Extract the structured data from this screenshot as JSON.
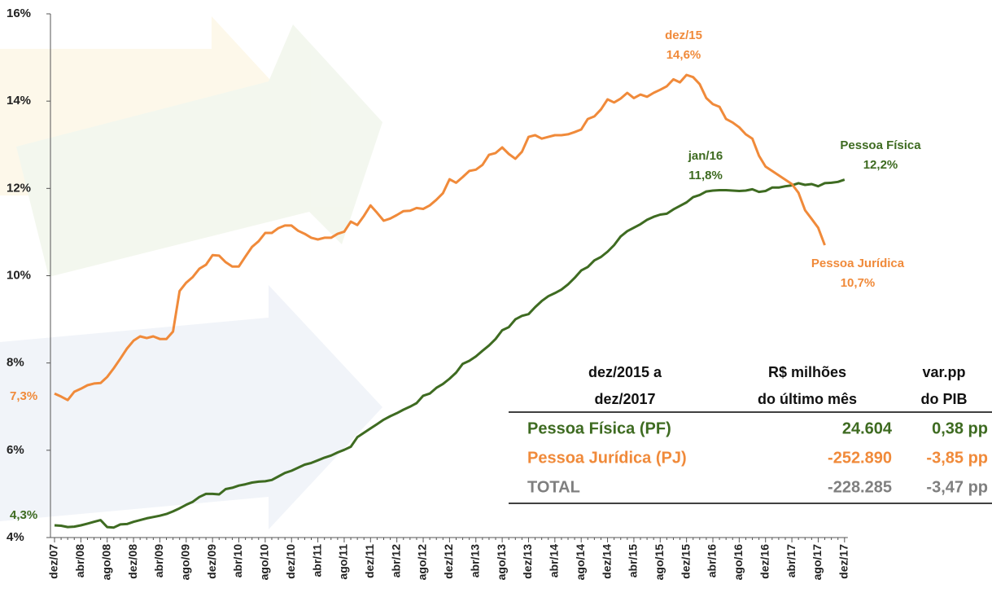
{
  "chart_data": {
    "type": "line",
    "categories": [
      "dez/07",
      null,
      null,
      null,
      "abr/08",
      null,
      null,
      null,
      "ago/08",
      null,
      null,
      null,
      "dez/08",
      null,
      null,
      null,
      "abr/09",
      null,
      null,
      null,
      "ago/09",
      null,
      null,
      null,
      "dez/09",
      null,
      null,
      null,
      "abr/10",
      null,
      null,
      null,
      "ago/10",
      null,
      null,
      null,
      "dez/10",
      null,
      null,
      null,
      "abr/11",
      null,
      null,
      null,
      "ago/11",
      null,
      null,
      null,
      "dez/11",
      null,
      null,
      null,
      "abr/12",
      null,
      null,
      null,
      "ago/12",
      null,
      null,
      null,
      "dez/12",
      null,
      null,
      null,
      "abr/13",
      null,
      null,
      null,
      "ago/13",
      null,
      null,
      null,
      "dez/13",
      null,
      null,
      null,
      "abr/14",
      null,
      null,
      null,
      "ago/14",
      null,
      null,
      null,
      "dez/14",
      null,
      null,
      null,
      "abr/15",
      null,
      null,
      null,
      "ago/15",
      null,
      null,
      null,
      "dez/15",
      null,
      null,
      null,
      "abr/16",
      null,
      null,
      null,
      "ago/16",
      null,
      null,
      null,
      "dez/16",
      null,
      null,
      null,
      "abr/17",
      null,
      null,
      null,
      "ago/17",
      null,
      null,
      null,
      "dez/17"
    ],
    "series": [
      {
        "name": "Pessoa Física",
        "color": "#3e6b21",
        "values": [
          4.28,
          4.27,
          4.24,
          4.25,
          4.28,
          4.32,
          4.36,
          4.4,
          4.24,
          4.23,
          4.3,
          4.31,
          4.36,
          4.4,
          4.44,
          4.47,
          4.5,
          4.54,
          4.6,
          4.67,
          4.75,
          4.82,
          4.93,
          5.0,
          5.0,
          4.99,
          5.11,
          5.14,
          5.19,
          5.22,
          5.26,
          5.28,
          5.29,
          5.32,
          5.4,
          5.48,
          5.53,
          5.6,
          5.67,
          5.71,
          5.77,
          5.83,
          5.88,
          5.95,
          6.01,
          6.08,
          6.3,
          6.4,
          6.5,
          6.6,
          6.7,
          6.78,
          6.85,
          6.93,
          7.0,
          7.08,
          7.25,
          7.3,
          7.43,
          7.52,
          7.64,
          7.78,
          7.98,
          8.05,
          8.15,
          8.28,
          8.4,
          8.55,
          8.75,
          8.82,
          9.0,
          9.08,
          9.12,
          9.28,
          9.42,
          9.53,
          9.6,
          9.68,
          9.8,
          9.95,
          10.12,
          10.2,
          10.35,
          10.43,
          10.55,
          10.7,
          10.9,
          11.02,
          11.1,
          11.18,
          11.28,
          11.35,
          11.4,
          11.42,
          11.52,
          11.6,
          11.68,
          11.8,
          11.85,
          11.93,
          11.95,
          11.96,
          11.96,
          11.95,
          11.94,
          11.95,
          11.98,
          11.92,
          11.94,
          12.02,
          12.02,
          12.05,
          12.07,
          12.12,
          12.08,
          12.1,
          12.05,
          12.12,
          12.13,
          12.15,
          12.2
        ],
        "value_labels": [
          "4,3%",
          null,
          null,
          null,
          null,
          null,
          null,
          null,
          null,
          null,
          null,
          null,
          null,
          null,
          null,
          null,
          null,
          null,
          null,
          null,
          null,
          null,
          null,
          null,
          null,
          null,
          null,
          null,
          null,
          null,
          null,
          null,
          null,
          null,
          null,
          null,
          null,
          null,
          null,
          null,
          null,
          null,
          null,
          null,
          null,
          null,
          null,
          null,
          null,
          null,
          null,
          null,
          null,
          null,
          null,
          null,
          null,
          null,
          null,
          null,
          null,
          null,
          null,
          null,
          null,
          null,
          null,
          null,
          null,
          null,
          null,
          null,
          null,
          null,
          null,
          null,
          null,
          null,
          null,
          null,
          null,
          null,
          null,
          null,
          null,
          null,
          null,
          null,
          null,
          null,
          null,
          null,
          null,
          null,
          null,
          null,
          null,
          "11,8%",
          null,
          null,
          null,
          null,
          null,
          null,
          null,
          null,
          null,
          null,
          null,
          null,
          null,
          null,
          null,
          null,
          null,
          null,
          null,
          null,
          null,
          null,
          "12,2%"
        ]
      },
      {
        "name": "Pessoa Jurídica",
        "color": "#f08a3a",
        "values": [
          7.3,
          7.23,
          7.15,
          7.34,
          7.41,
          7.49,
          7.53,
          7.54,
          7.68,
          7.88,
          8.1,
          8.33,
          8.51,
          8.61,
          8.57,
          8.61,
          8.55,
          8.55,
          8.72,
          9.65,
          9.84,
          9.97,
          10.16,
          10.25,
          10.47,
          10.46,
          10.31,
          10.21,
          10.21,
          10.44,
          10.66,
          10.79,
          10.98,
          10.98,
          11.09,
          11.15,
          11.15,
          11.03,
          10.96,
          10.87,
          10.83,
          10.87,
          10.87,
          10.96,
          11.01,
          11.24,
          11.16,
          11.37,
          11.61,
          11.44,
          11.26,
          11.31,
          11.39,
          11.48,
          11.49,
          11.55,
          11.53,
          11.61,
          11.74,
          11.89,
          12.21,
          12.13,
          12.26,
          12.4,
          12.43,
          12.54,
          12.77,
          12.81,
          12.94,
          12.79,
          12.68,
          12.84,
          13.18,
          13.22,
          13.14,
          13.18,
          13.22,
          13.22,
          13.24,
          13.29,
          13.35,
          13.59,
          13.65,
          13.81,
          14.04,
          13.97,
          14.06,
          14.19,
          14.07,
          14.15,
          14.1,
          14.19,
          14.26,
          14.34,
          14.5,
          14.43,
          14.6,
          14.55,
          14.39,
          14.07,
          13.93,
          13.87,
          13.59,
          13.51,
          13.4,
          13.24,
          13.14,
          12.75,
          12.5,
          12.4,
          12.3,
          12.2,
          12.1,
          11.9,
          11.5,
          11.3,
          11.1,
          10.7,
          null,
          null,
          null
        ],
        "value_labels": [
          "7,3%",
          null,
          null,
          null,
          null,
          null,
          null,
          null,
          null,
          null,
          null,
          null,
          null,
          null,
          null,
          null,
          null,
          null,
          null,
          null,
          null,
          null,
          null,
          null,
          null,
          null,
          null,
          null,
          null,
          null,
          null,
          null,
          null,
          null,
          null,
          null,
          null,
          null,
          null,
          null,
          null,
          null,
          null,
          null,
          null,
          null,
          null,
          null,
          null,
          null,
          null,
          null,
          null,
          null,
          null,
          null,
          null,
          null,
          null,
          null,
          null,
          null,
          null,
          null,
          null,
          null,
          null,
          null,
          null,
          null,
          null,
          null,
          null,
          null,
          null,
          null,
          null,
          null,
          null,
          null,
          null,
          null,
          null,
          null,
          null,
          null,
          null,
          null,
          null,
          null,
          null,
          null,
          null,
          null,
          null,
          null,
          "14,6%",
          null,
          null,
          null,
          null,
          null,
          null,
          null,
          null,
          null,
          null,
          null,
          null,
          null,
          null,
          null,
          null,
          null,
          null,
          null,
          null,
          "10,7%",
          null,
          null,
          null
        ]
      }
    ],
    "annotations": [
      "dez/15",
      "jan/16"
    ],
    "ylim": [
      4,
      16
    ],
    "yticks": [
      {
        "value": 4,
        "label": "4%"
      },
      {
        "value": 6,
        "label": "6%"
      },
      {
        "value": 8,
        "label": "8%"
      },
      {
        "value": 10,
        "label": "10%"
      },
      {
        "value": 12,
        "label": "12%"
      },
      {
        "value": 14,
        "label": "14%"
      },
      {
        "value": 16,
        "label": "16%"
      }
    ]
  },
  "table": {
    "header": [
      [
        "dez/2015 a",
        "dez/2017"
      ],
      [
        "R$ milhões",
        "do último mês"
      ],
      [
        "var.pp",
        "do PIB"
      ]
    ],
    "rows": [
      [
        "Pessoa Física (PF)",
        "24.604",
        "0,38 pp"
      ],
      [
        "Pessoa Jurídica (PJ)",
        "-252.890",
        "-3,85 pp"
      ],
      [
        "TOTAL",
        "-228.285",
        "-3,47 pp"
      ]
    ]
  }
}
